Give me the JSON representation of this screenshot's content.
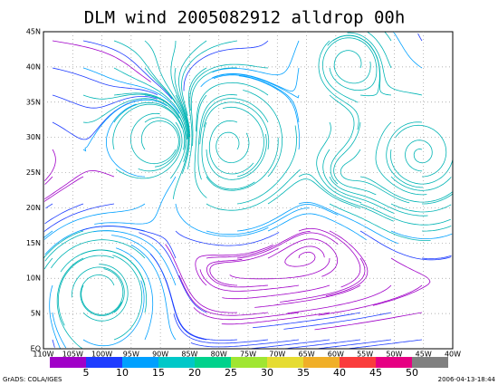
{
  "title": "DLM wind 2005082912 alldrop 00h",
  "lat_labels": [
    "EQ",
    "5N",
    "10N",
    "15N",
    "20N",
    "25N",
    "30N",
    "35N",
    "40N",
    "45N"
  ],
  "lon_labels": [
    "110W",
    "105W",
    "100W",
    "95W",
    "90W",
    "85W",
    "80W",
    "75W",
    "70W",
    "65W",
    "60W",
    "55W",
    "50W",
    "45W",
    "40W"
  ],
  "colorbar": {
    "labels": [
      5,
      10,
      15,
      20,
      25,
      30,
      35,
      40,
      45,
      50
    ],
    "colors": [
      "#a000c8",
      "#1e3cff",
      "#00a0ff",
      "#00c8c8",
      "#00d28c",
      "#a0e632",
      "#e6dc32",
      "#f0af28",
      "#fa3c3c",
      "#e60082",
      "#808080"
    ]
  },
  "footer": {
    "credit": "GrADS: COLA/IGES",
    "timestamp": "2006-04-13-18:44"
  }
}
